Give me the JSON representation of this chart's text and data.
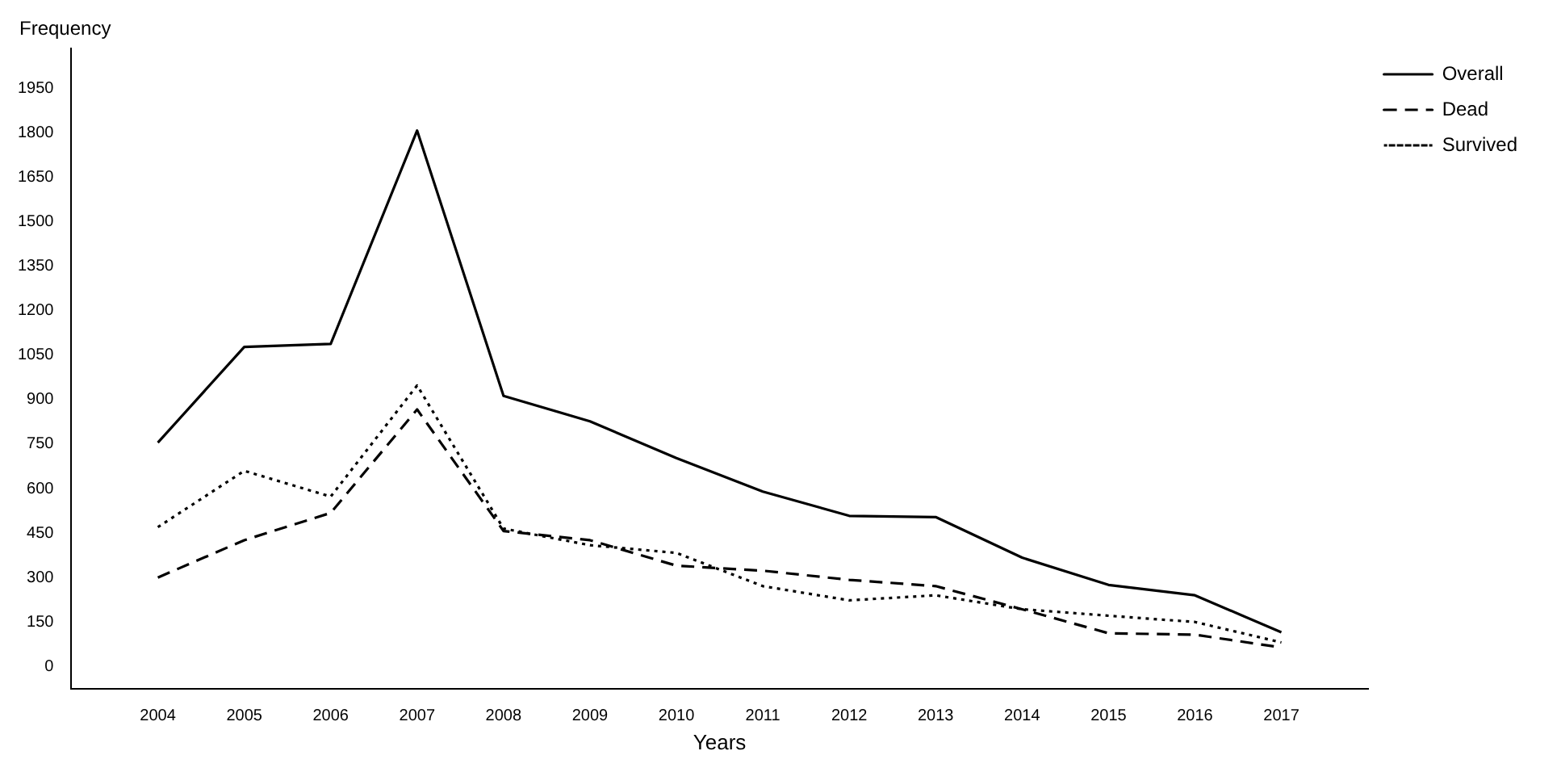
{
  "chart_data": {
    "type": "line",
    "xlabel": "Years",
    "ylabel": "Frequency",
    "x": [
      2004,
      2005,
      2006,
      2007,
      2008,
      2009,
      2010,
      2011,
      2012,
      2013,
      2014,
      2015,
      2016,
      2017
    ],
    "xlim": [
      2003,
      2018
    ],
    "xticks": [
      2004,
      2005,
      2006,
      2007,
      2008,
      2009,
      2010,
      2011,
      2012,
      2013,
      2014,
      2015,
      2016,
      2017
    ],
    "ylim": [
      -75,
      2085
    ],
    "yticks": [
      0,
      150,
      300,
      450,
      600,
      750,
      900,
      1050,
      1200,
      1350,
      1500,
      1650,
      1800,
      1950
    ],
    "series": [
      {
        "name": "Overall",
        "color": "#000000",
        "line_style": "solid",
        "values": [
          755,
          1078,
          1088,
          1808,
          913,
          827,
          703,
          590,
          508,
          504,
          367,
          275,
          240,
          115
        ]
      },
      {
        "name": "Dead",
        "color": "#000000",
        "line_style": "dashed",
        "values": [
          300,
          426,
          518,
          867,
          457,
          426,
          340,
          323,
          292,
          271,
          193,
          112,
          107,
          64
        ]
      },
      {
        "name": "Survived",
        "color": "#000000",
        "line_style": "dotted",
        "values": [
          470,
          660,
          573,
          948,
          465,
          409,
          383,
          271,
          223,
          240,
          193,
          171,
          150,
          81
        ]
      }
    ],
    "grid": false,
    "legend": "top right",
    "marker": "none"
  }
}
